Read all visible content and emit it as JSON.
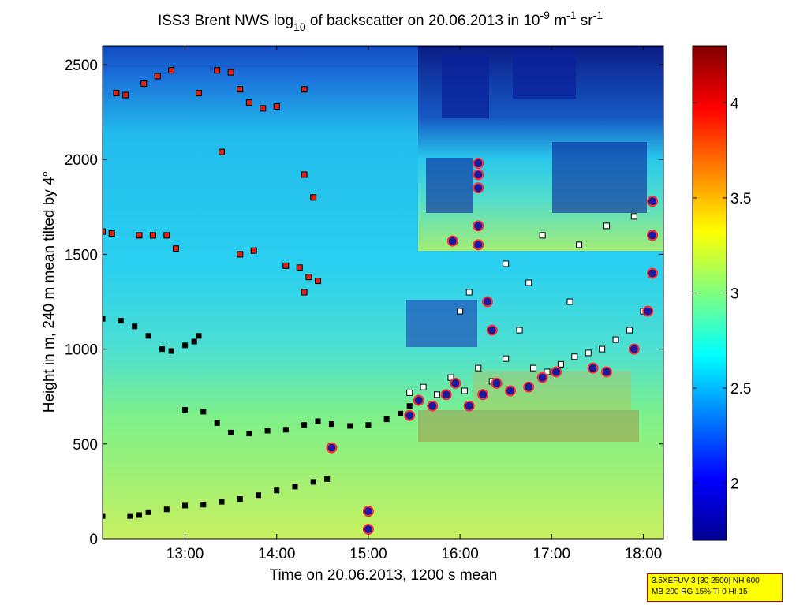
{
  "chart_data": {
    "type": "heatmap",
    "title": {
      "prefix": "ISS3 Brent NWS log",
      "sub": "10",
      "mid": " of backscatter on 20.06.2013 in 10",
      "exp1": "-9",
      "unit1": " m",
      "exp2": "-1",
      "unit2": " sr",
      "exp3": "-1"
    },
    "xlabel": "Time on 20.06.2013, 1200 s mean",
    "ylabel": "Height in m, 240 m mean tilted by 4°",
    "xlim": [
      12.1,
      18.22
    ],
    "ylim": [
      0,
      2600
    ],
    "xticks": [
      {
        "value": 13,
        "label": "13:00"
      },
      {
        "value": 14,
        "label": "14:00"
      },
      {
        "value": 15,
        "label": "15:00"
      },
      {
        "value": 16,
        "label": "16:00"
      },
      {
        "value": 17,
        "label": "17:00"
      },
      {
        "value": 18,
        "label": "18:00"
      }
    ],
    "yticks": [
      0,
      500,
      1000,
      1500,
      2000,
      2500
    ],
    "colorbar": {
      "range": [
        1.7,
        4.3
      ],
      "ticks": [
        2,
        2.5,
        3,
        3.5,
        4
      ],
      "colormap": "jet"
    },
    "series": [
      {
        "name": "lowest layer (black squares)",
        "marker": "black-square",
        "points": [
          [
            12.1,
            120
          ],
          [
            12.4,
            120
          ],
          [
            12.5,
            125
          ],
          [
            12.6,
            140
          ],
          [
            12.8,
            155
          ],
          [
            13.0,
            175
          ],
          [
            13.2,
            180
          ],
          [
            13.4,
            195
          ],
          [
            13.6,
            210
          ],
          [
            13.8,
            230
          ],
          [
            14.0,
            255
          ],
          [
            14.2,
            275
          ],
          [
            14.4,
            300
          ],
          [
            14.55,
            315
          ]
        ]
      },
      {
        "name": "second layer (black squares)",
        "marker": "black-square",
        "points": [
          [
            13.0,
            680
          ],
          [
            13.2,
            670
          ],
          [
            13.35,
            610
          ],
          [
            13.5,
            560
          ],
          [
            13.7,
            555
          ],
          [
            13.9,
            570
          ],
          [
            14.1,
            575
          ],
          [
            14.3,
            600
          ],
          [
            14.45,
            620
          ],
          [
            14.6,
            605
          ],
          [
            14.8,
            595
          ],
          [
            15.0,
            600
          ],
          [
            15.2,
            630
          ],
          [
            15.35,
            660
          ],
          [
            15.45,
            700
          ]
        ]
      },
      {
        "name": "upper boundary (black squares)",
        "marker": "black-square",
        "points": [
          [
            12.1,
            1160
          ],
          [
            12.3,
            1150
          ],
          [
            12.45,
            1120
          ],
          [
            12.6,
            1070
          ],
          [
            12.75,
            1000
          ],
          [
            12.85,
            990
          ],
          [
            13.0,
            1020
          ],
          [
            13.1,
            1040
          ],
          [
            13.15,
            1070
          ]
        ]
      },
      {
        "name": "cloud layer (red squares)",
        "marker": "red-square",
        "points": [
          [
            12.1,
            1620
          ],
          [
            12.2,
            1610
          ],
          [
            12.5,
            1600
          ],
          [
            12.65,
            1600
          ],
          [
            12.8,
            1600
          ],
          [
            12.9,
            1530
          ],
          [
            12.25,
            2350
          ],
          [
            12.35,
            2340
          ],
          [
            12.55,
            2400
          ],
          [
            12.7,
            2440
          ],
          [
            12.85,
            2470
          ],
          [
            13.15,
            2350
          ],
          [
            13.35,
            2470
          ],
          [
            13.5,
            2460
          ],
          [
            13.6,
            2370
          ],
          [
            13.7,
            2300
          ],
          [
            13.85,
            2270
          ],
          [
            14.0,
            2280
          ],
          [
            14.3,
            2370
          ],
          [
            13.4,
            2040
          ],
          [
            14.3,
            1920
          ],
          [
            14.4,
            1800
          ],
          [
            13.6,
            1500
          ],
          [
            13.75,
            1520
          ],
          [
            14.1,
            1440
          ],
          [
            14.25,
            1430
          ],
          [
            14.35,
            1380
          ],
          [
            14.45,
            1360
          ],
          [
            14.3,
            1300
          ]
        ]
      },
      {
        "name": "cloud base (white squares)",
        "marker": "white-square",
        "points": [
          [
            15.45,
            770
          ],
          [
            15.6,
            800
          ],
          [
            15.75,
            760
          ],
          [
            15.9,
            850
          ],
          [
            16.05,
            780
          ],
          [
            16.2,
            900
          ],
          [
            16.35,
            830
          ],
          [
            16.5,
            950
          ],
          [
            16.65,
            1100
          ],
          [
            16.8,
            900
          ],
          [
            16.95,
            880
          ],
          [
            17.1,
            920
          ],
          [
            17.25,
            960
          ],
          [
            17.4,
            980
          ],
          [
            17.55,
            1000
          ],
          [
            17.7,
            1050
          ],
          [
            17.85,
            1100
          ],
          [
            18.0,
            1200
          ],
          [
            16.0,
            1200
          ],
          [
            16.5,
            1450
          ],
          [
            16.9,
            1600
          ],
          [
            17.3,
            1550
          ],
          [
            17.6,
            1650
          ],
          [
            17.9,
            1700
          ],
          [
            16.1,
            1300
          ],
          [
            16.75,
            1350
          ],
          [
            17.2,
            1250
          ]
        ]
      },
      {
        "name": "precipitation / strong echo (purple circles)",
        "marker": "purple-circle",
        "points": [
          [
            14.6,
            480
          ],
          [
            15.0,
            145
          ],
          [
            15.0,
            50
          ],
          [
            15.45,
            650
          ],
          [
            15.55,
            730
          ],
          [
            15.7,
            700
          ],
          [
            15.85,
            760
          ],
          [
            15.95,
            820
          ],
          [
            16.1,
            700
          ],
          [
            16.25,
            760
          ],
          [
            16.4,
            820
          ],
          [
            16.55,
            780
          ],
          [
            16.75,
            800
          ],
          [
            16.9,
            850
          ],
          [
            17.05,
            880
          ],
          [
            16.2,
            1550
          ],
          [
            16.2,
            1650
          ],
          [
            16.2,
            1850
          ],
          [
            16.2,
            1920
          ],
          [
            16.2,
            1980
          ],
          [
            15.92,
            1570
          ],
          [
            16.3,
            1250
          ],
          [
            16.35,
            1100
          ],
          [
            17.45,
            900
          ],
          [
            17.6,
            880
          ],
          [
            17.9,
            1000
          ],
          [
            18.05,
            1200
          ],
          [
            18.1,
            1400
          ],
          [
            18.1,
            1600
          ],
          [
            18.1,
            1780
          ]
        ]
      }
    ]
  },
  "infobox": {
    "line1": "3.5XEFUV 3 [30 2500] NH 600",
    "line2": "MB 200 RG 15% TI 0 HI 15"
  }
}
